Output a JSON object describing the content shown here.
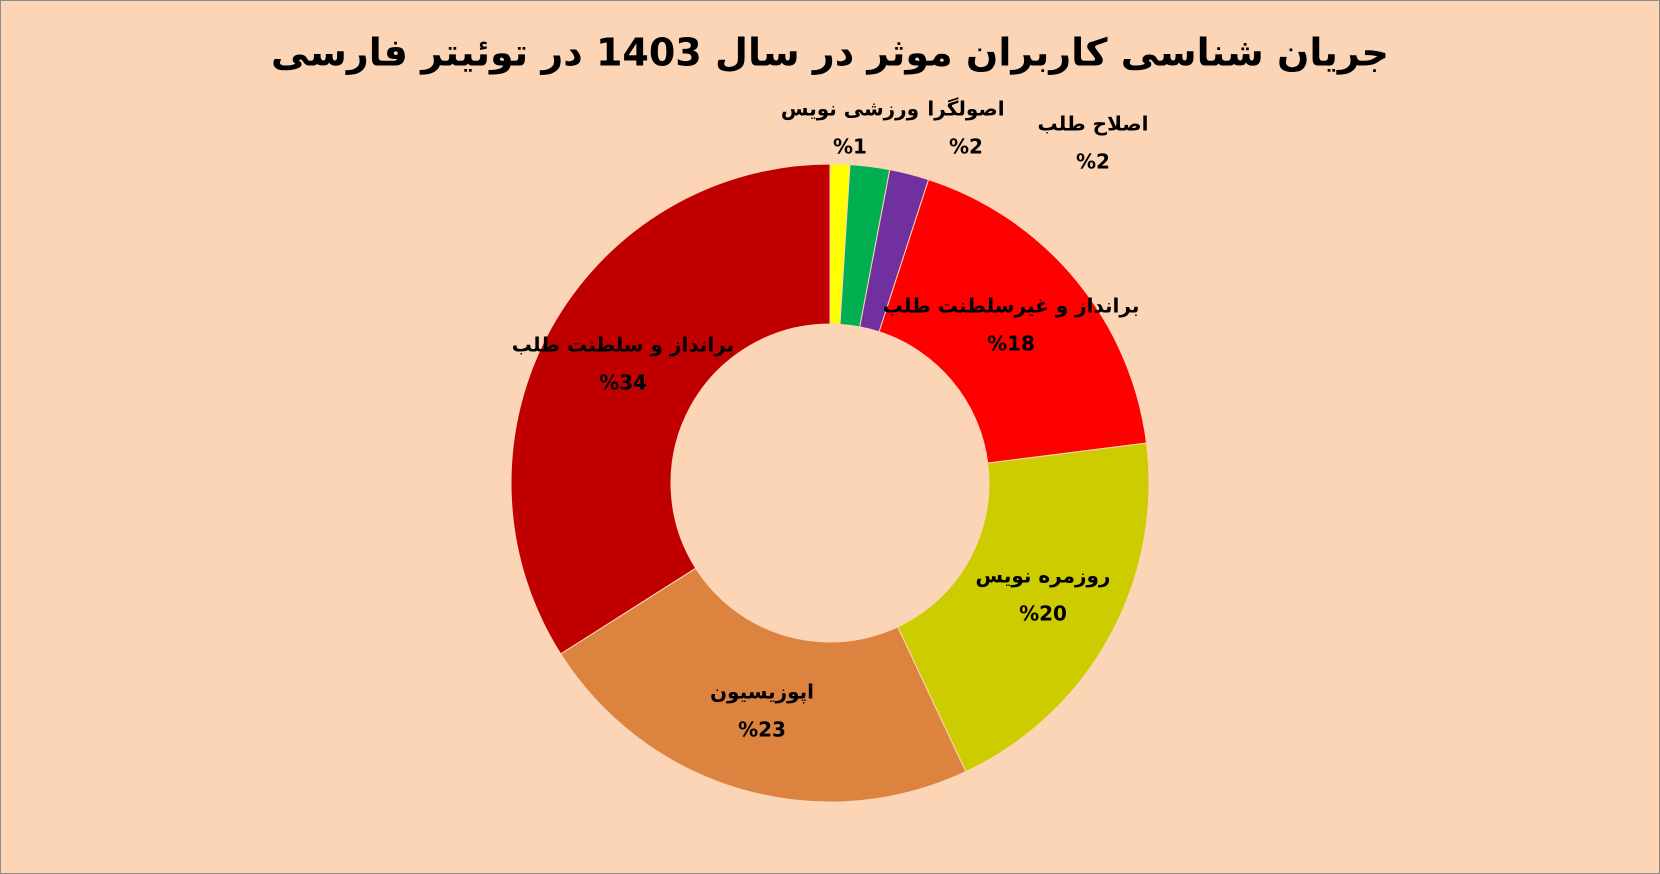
{
  "chart_data": {
    "type": "pie",
    "donut": true,
    "title": "جریان شناسی کاربران موثر در سال 1403 در توئیتر فارسی",
    "categories": [
      "ورزشی نویس",
      "اصولگرا",
      "اصلاح طلب",
      "برانداز و غیرسلطنت طلب",
      "روزمره نویس",
      "اپوزیسیون",
      "برانداز و سلطنت طلب"
    ],
    "values": [
      1,
      2,
      2,
      18,
      20,
      23,
      34
    ],
    "value_labels": [
      "%1",
      "%2",
      "%2",
      "%18",
      "%20",
      "%23",
      "%34"
    ],
    "colors": [
      "#FFFF00",
      "#00B050",
      "#7030A0",
      "#FF0000",
      "#CCCC00",
      "#DD8340",
      "#C00000"
    ]
  }
}
